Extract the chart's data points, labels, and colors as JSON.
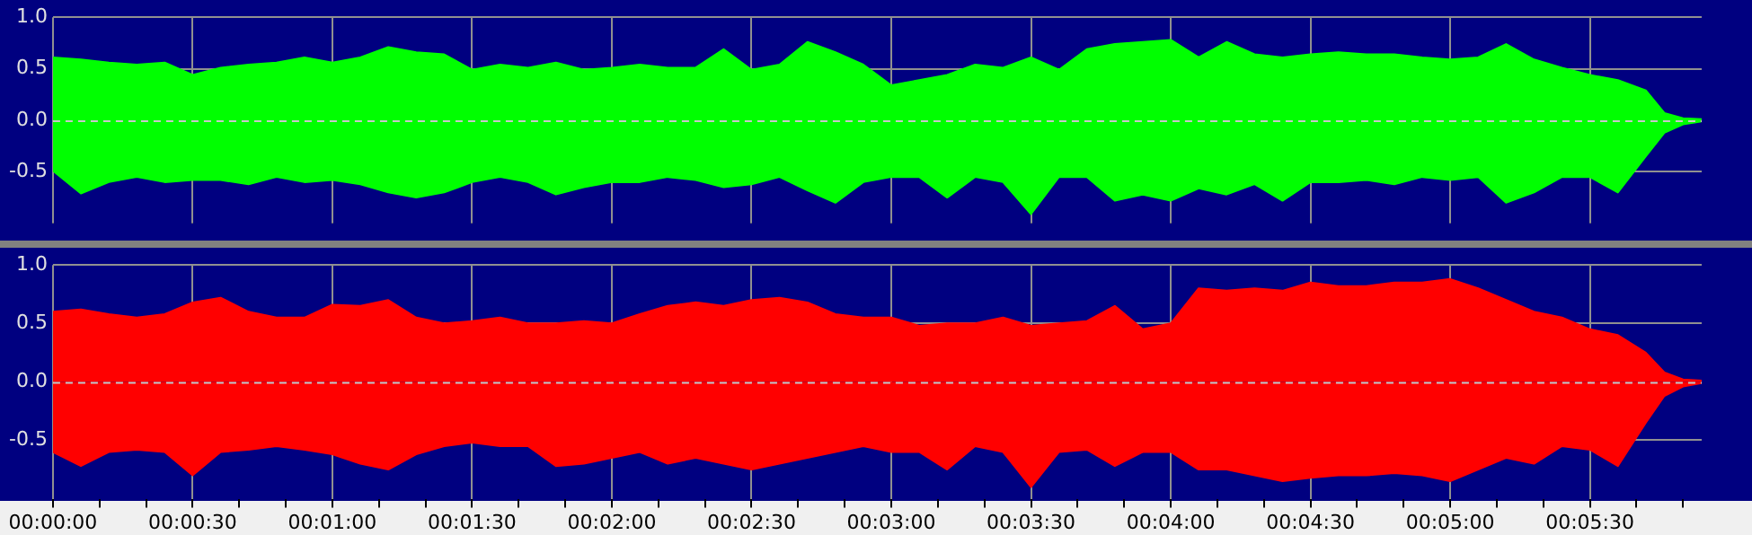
{
  "chart_data": [
    {
      "type": "area",
      "x": [
        0,
        6,
        12,
        18,
        24,
        30,
        36,
        42,
        48,
        54,
        60,
        66,
        72,
        78,
        84,
        90,
        96,
        102,
        108,
        114,
        120,
        126,
        132,
        138,
        144,
        150,
        156,
        162,
        168,
        174,
        180,
        186,
        192,
        198,
        204,
        210,
        216,
        222,
        228,
        234,
        240,
        246,
        252,
        258,
        264,
        270,
        276,
        282,
        288,
        294,
        300,
        306,
        312,
        318,
        324,
        330,
        336,
        342,
        346,
        350,
        354
      ],
      "series": [
        {
          "color": "#00ff00",
          "values": [
            0.61,
            0.59,
            0.56,
            0.54,
            0.56,
            0.44,
            0.51,
            0.54,
            0.56,
            0.61,
            0.56,
            0.61,
            0.71,
            0.66,
            0.64,
            0.49,
            0.54,
            0.51,
            0.56,
            0.49,
            0.51,
            0.54,
            0.51,
            0.51,
            0.69,
            0.49,
            0.54,
            0.76,
            0.66,
            0.54,
            0.34,
            0.39,
            0.44,
            0.54,
            0.51,
            0.61,
            0.49,
            0.69,
            0.74,
            0.76,
            0.78,
            0.61,
            0.76,
            0.64,
            0.61,
            0.64,
            0.66,
            0.64,
            0.64,
            0.61,
            0.59,
            0.61,
            0.74,
            0.59,
            0.51,
            0.44,
            0.39,
            0.29,
            0.07,
            0.02,
            0.01
          ]
        },
        {
          "color": "#00ff00",
          "values": [
            -0.49,
            -0.71,
            -0.6,
            -0.55,
            -0.6,
            -0.58,
            -0.58,
            -0.62,
            -0.55,
            -0.6,
            -0.58,
            -0.62,
            -0.7,
            -0.75,
            -0.7,
            -0.6,
            -0.55,
            -0.6,
            -0.72,
            -0.65,
            -0.6,
            -0.6,
            -0.55,
            -0.58,
            -0.65,
            -0.62,
            -0.55,
            -0.68,
            -0.8,
            -0.6,
            -0.55,
            -0.55,
            -0.75,
            -0.55,
            -0.6,
            -0.91,
            -0.55,
            -0.55,
            -0.78,
            -0.72,
            -0.78,
            -0.66,
            -0.72,
            -0.62,
            -0.78,
            -0.6,
            -0.6,
            -0.58,
            -0.62,
            -0.55,
            -0.58,
            -0.55,
            -0.8,
            -0.7,
            -0.55,
            -0.55,
            -0.7,
            -0.35,
            -0.12,
            -0.04,
            -0.01
          ]
        }
      ],
      "xlim": [
        0,
        354
      ],
      "ylim": [
        -1,
        1
      ],
      "xticks": [
        0,
        30,
        60,
        90,
        120,
        150,
        180,
        210,
        240,
        270,
        300,
        330
      ],
      "yticks": [
        {
          "value": -0.5,
          "label": "-0.5"
        },
        {
          "value": 0,
          "label": "0.0"
        },
        {
          "value": 0.5,
          "label": "0.5"
        },
        {
          "value": 1,
          "label": "1.0"
        }
      ],
      "grid": true,
      "tick_labels": "y",
      "ref_lines": [
        {
          "axis": "y",
          "value": 0,
          "color": "#c8c8c8",
          "line_style": "dashed"
        }
      ]
    },
    {
      "type": "area",
      "x": [
        0,
        6,
        12,
        18,
        24,
        30,
        36,
        42,
        48,
        54,
        60,
        66,
        72,
        78,
        84,
        90,
        96,
        102,
        108,
        114,
        120,
        126,
        132,
        138,
        144,
        150,
        156,
        162,
        168,
        174,
        180,
        186,
        192,
        198,
        204,
        210,
        216,
        222,
        228,
        234,
        240,
        246,
        252,
        258,
        264,
        270,
        276,
        282,
        288,
        294,
        300,
        306,
        312,
        318,
        324,
        330,
        336,
        342,
        346,
        350,
        354
      ],
      "series": [
        {
          "color": "#ff0000",
          "values": [
            0.6,
            0.62,
            0.58,
            0.55,
            0.58,
            0.68,
            0.72,
            0.6,
            0.55,
            0.55,
            0.66,
            0.65,
            0.7,
            0.55,
            0.5,
            0.52,
            0.55,
            0.5,
            0.5,
            0.52,
            0.5,
            0.58,
            0.65,
            0.68,
            0.65,
            0.7,
            0.72,
            0.68,
            0.58,
            0.55,
            0.55,
            0.48,
            0.5,
            0.5,
            0.55,
            0.48,
            0.5,
            0.52,
            0.65,
            0.45,
            0.5,
            0.8,
            0.78,
            0.8,
            0.78,
            0.85,
            0.82,
            0.82,
            0.85,
            0.85,
            0.88,
            0.8,
            0.7,
            0.6,
            0.55,
            0.45,
            0.4,
            0.25,
            0.08,
            0.02,
            0.01
          ]
        },
        {
          "color": "#ff0000",
          "values": [
            -0.6,
            -0.72,
            -0.6,
            -0.58,
            -0.6,
            -0.8,
            -0.6,
            -0.58,
            -0.55,
            -0.58,
            -0.62,
            -0.7,
            -0.75,
            -0.62,
            -0.55,
            -0.52,
            -0.55,
            -0.55,
            -0.72,
            -0.7,
            -0.65,
            -0.6,
            -0.7,
            -0.65,
            -0.7,
            -0.75,
            -0.7,
            -0.65,
            -0.6,
            -0.55,
            -0.6,
            -0.6,
            -0.75,
            -0.55,
            -0.6,
            -0.9,
            -0.6,
            -0.58,
            -0.72,
            -0.6,
            -0.6,
            -0.75,
            -0.75,
            -0.8,
            -0.85,
            -0.82,
            -0.8,
            -0.8,
            -0.78,
            -0.8,
            -0.85,
            -0.75,
            -0.65,
            -0.7,
            -0.55,
            -0.58,
            -0.72,
            -0.35,
            -0.12,
            -0.04,
            -0.01
          ]
        }
      ],
      "xlim": [
        0,
        354
      ],
      "ylim": [
        -1,
        1
      ],
      "xticks": [
        {
          "value": 0,
          "label": "00:00:00"
        },
        {
          "value": 10,
          "label": null
        },
        {
          "value": 20,
          "label": null
        },
        {
          "value": 30,
          "label": "00:00:30"
        },
        {
          "value": 40,
          "label": null
        },
        {
          "value": 50,
          "label": null
        },
        {
          "value": 60,
          "label": "00:01:00"
        },
        {
          "value": 70,
          "label": null
        },
        {
          "value": 80,
          "label": null
        },
        {
          "value": 90,
          "label": "00:01:30"
        },
        {
          "value": 100,
          "label": null
        },
        {
          "value": 110,
          "label": null
        },
        {
          "value": 120,
          "label": "00:02:00"
        },
        {
          "value": 130,
          "label": null
        },
        {
          "value": 140,
          "label": null
        },
        {
          "value": 150,
          "label": "00:02:30"
        },
        {
          "value": 160,
          "label": null
        },
        {
          "value": 170,
          "label": null
        },
        {
          "value": 180,
          "label": "00:03:00"
        },
        {
          "value": 190,
          "label": null
        },
        {
          "value": 200,
          "label": null
        },
        {
          "value": 210,
          "label": "00:03:30"
        },
        {
          "value": 220,
          "label": null
        },
        {
          "value": 230,
          "label": null
        },
        {
          "value": 240,
          "label": "00:04:00"
        },
        {
          "value": 250,
          "label": null
        },
        {
          "value": 260,
          "label": null
        },
        {
          "value": 270,
          "label": "00:04:30"
        },
        {
          "value": 280,
          "label": null
        },
        {
          "value": 290,
          "label": null
        },
        {
          "value": 300,
          "label": "00:05:00"
        },
        {
          "value": 310,
          "label": null
        },
        {
          "value": 320,
          "label": null
        },
        {
          "value": 330,
          "label": "00:05:30"
        },
        {
          "value": 340,
          "label": null
        },
        {
          "value": 350,
          "label": null
        }
      ],
      "yticks": [
        {
          "value": -0.5,
          "label": "-0.5"
        },
        {
          "value": 0,
          "label": "0.0"
        },
        {
          "value": 0.5,
          "label": "0.5"
        },
        {
          "value": 1,
          "label": "1.0"
        }
      ],
      "grid": true,
      "ref_lines": [
        {
          "axis": "y",
          "value": 0,
          "color": "#c8c8c8",
          "line_style": "dashed"
        }
      ]
    }
  ]
}
